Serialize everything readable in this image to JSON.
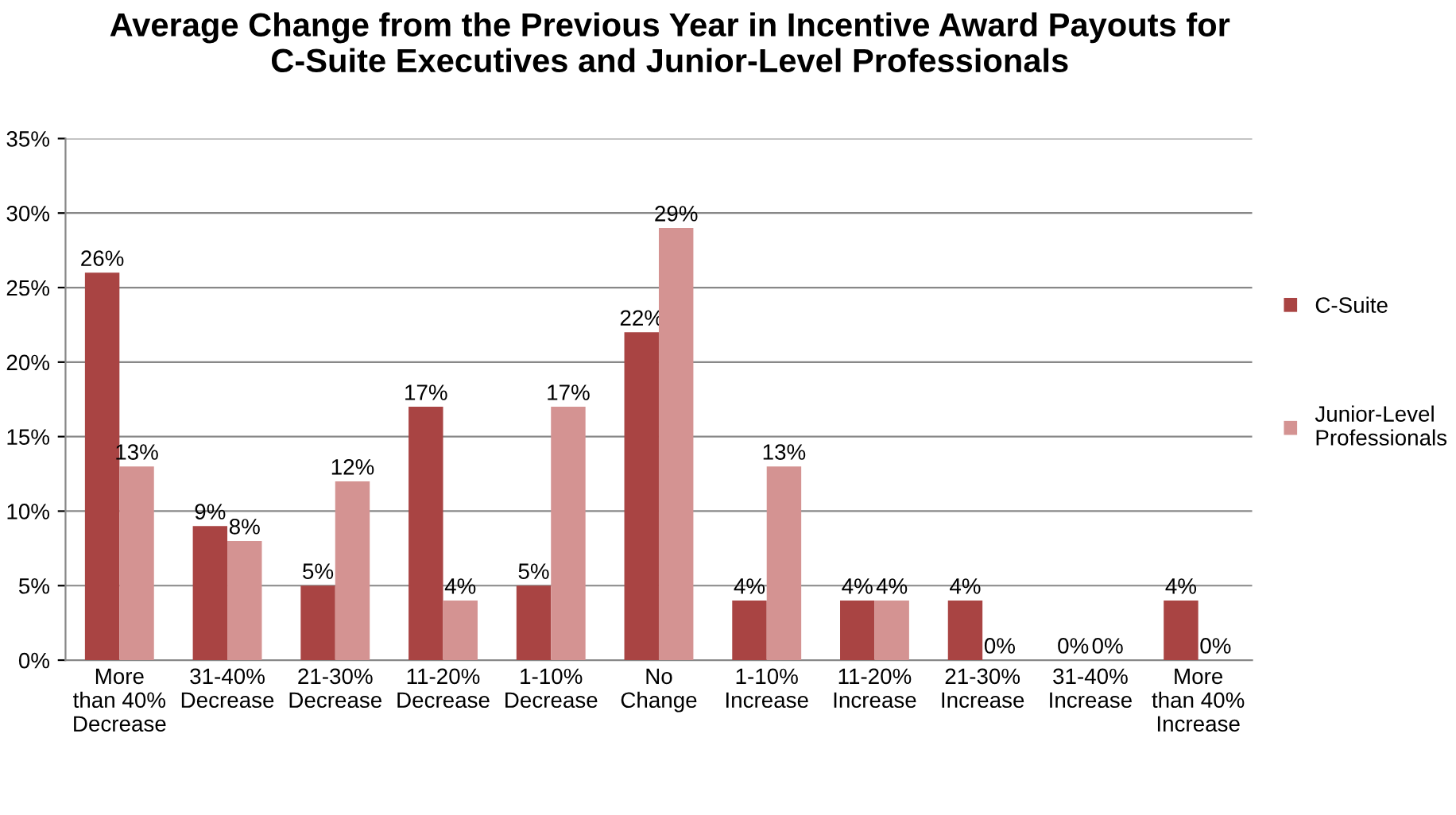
{
  "chart_data": {
    "type": "bar",
    "title": "Average Change from the Previous Year in Incentive Award Payouts for\nC-Suite Executives and Junior-Level Professionals",
    "categories": [
      "More\nthan 40%\nDecrease",
      "31-40%\nDecrease",
      "21-30%\nDecrease",
      "11-20%\nDecrease",
      "1-10%\nDecrease",
      "No\nChange",
      "1-10%\nIncrease",
      "11-20%\nIncrease",
      "21-30%\nIncrease",
      "31-40%\nIncrease",
      "More\nthan 40%\nIncrease"
    ],
    "series": [
      {
        "name": "C-Suite",
        "color": "#a94443",
        "values": [
          26,
          9,
          5,
          17,
          5,
          22,
          4,
          4,
          4,
          0,
          4
        ],
        "value_labels": [
          "26%",
          "9%",
          "5%",
          "17%",
          "5%",
          "22%",
          "4%",
          "4%",
          "4%",
          "0%",
          "4%"
        ]
      },
      {
        "name": "Junior-Level\nProfessionals",
        "color": "#d49392",
        "values": [
          13,
          8,
          12,
          4,
          17,
          29,
          13,
          4,
          0,
          0,
          0
        ],
        "value_labels": [
          "13%",
          "8%",
          "12%",
          "4%",
          "17%",
          "29%",
          "13%",
          "4%",
          "0%",
          "0%",
          "0%"
        ]
      }
    ],
    "ylim": [
      0,
      35
    ],
    "yticks": [
      {
        "value": 0,
        "label": "0%"
      },
      {
        "value": 5,
        "label": "5%"
      },
      {
        "value": 10,
        "label": "10%"
      },
      {
        "value": 15,
        "label": "15%"
      },
      {
        "value": 20,
        "label": "20%"
      },
      {
        "value": 25,
        "label": "25%"
      },
      {
        "value": 30,
        "label": "30%"
      },
      {
        "value": 35,
        "label": "35%"
      }
    ],
    "grid": "y",
    "legend": "right"
  }
}
